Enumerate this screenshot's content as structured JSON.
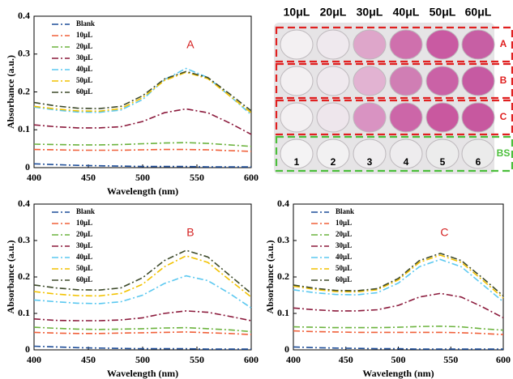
{
  "chart_data": [
    {
      "type": "line",
      "panel_label": "A",
      "x_label": "Wavelength (nm)",
      "y_label": "Absorbance (a.u.)",
      "x": [
        400,
        420,
        440,
        460,
        480,
        500,
        520,
        540,
        560,
        580,
        600
      ],
      "xlim": [
        400,
        600
      ],
      "xticks": [
        400,
        450,
        500,
        550,
        600
      ],
      "ylim": [
        0,
        0.4
      ],
      "yticks": [
        0,
        0.1,
        0.2,
        0.3,
        0.4
      ],
      "legend": "upper left",
      "series": [
        {
          "name": "Blank",
          "color": "#1f4e99",
          "values": [
            0.01,
            0.008,
            0.006,
            0.005,
            0.004,
            0.003,
            0.003,
            0.003,
            0.002,
            0.002,
            0.002
          ]
        },
        {
          "name": "10μL",
          "color": "#f0603a",
          "values": [
            0.048,
            0.047,
            0.046,
            0.046,
            0.046,
            0.047,
            0.048,
            0.048,
            0.047,
            0.045,
            0.043
          ]
        },
        {
          "name": "20μL",
          "color": "#6cb33e",
          "values": [
            0.062,
            0.061,
            0.06,
            0.06,
            0.061,
            0.063,
            0.065,
            0.066,
            0.064,
            0.06,
            0.056
          ]
        },
        {
          "name": "30μL",
          "color": "#8b1a3c",
          "values": [
            0.113,
            0.108,
            0.105,
            0.105,
            0.108,
            0.122,
            0.145,
            0.155,
            0.145,
            0.118,
            0.088
          ]
        },
        {
          "name": "40μL",
          "color": "#5bc8f0",
          "values": [
            0.16,
            0.152,
            0.147,
            0.146,
            0.152,
            0.18,
            0.232,
            0.262,
            0.238,
            0.19,
            0.14
          ]
        },
        {
          "name": "50μL",
          "color": "#f2c200",
          "values": [
            0.162,
            0.155,
            0.15,
            0.149,
            0.156,
            0.185,
            0.23,
            0.252,
            0.235,
            0.19,
            0.145
          ]
        },
        {
          "name": "60μL",
          "color": "#3d4a2a",
          "values": [
            0.172,
            0.163,
            0.157,
            0.156,
            0.162,
            0.19,
            0.234,
            0.254,
            0.238,
            0.195,
            0.15
          ]
        }
      ]
    },
    {
      "type": "line",
      "panel_label": "B",
      "x_label": "Wavelength (nm)",
      "y_label": "Absorbance (a.u.)",
      "x": [
        400,
        420,
        440,
        460,
        480,
        500,
        520,
        540,
        560,
        580,
        600
      ],
      "xlim": [
        400,
        600
      ],
      "xticks": [
        400,
        450,
        500,
        550,
        600
      ],
      "ylim": [
        0,
        0.4
      ],
      "yticks": [
        0,
        0.1,
        0.2,
        0.3,
        0.4
      ],
      "legend": "upper left",
      "series": [
        {
          "name": "Blank",
          "color": "#1f4e99",
          "values": [
            0.01,
            0.008,
            0.006,
            0.005,
            0.004,
            0.003,
            0.003,
            0.003,
            0.002,
            0.002,
            0.002
          ]
        },
        {
          "name": "10μL",
          "color": "#f0603a",
          "values": [
            0.048,
            0.046,
            0.045,
            0.045,
            0.046,
            0.047,
            0.048,
            0.049,
            0.047,
            0.045,
            0.042
          ]
        },
        {
          "name": "20μL",
          "color": "#6cb33e",
          "values": [
            0.062,
            0.059,
            0.057,
            0.056,
            0.057,
            0.058,
            0.06,
            0.061,
            0.058,
            0.055,
            0.05
          ]
        },
        {
          "name": "30μL",
          "color": "#8b1a3c",
          "values": [
            0.085,
            0.081,
            0.08,
            0.08,
            0.082,
            0.088,
            0.1,
            0.107,
            0.103,
            0.092,
            0.08
          ]
        },
        {
          "name": "40μL",
          "color": "#5bc8f0",
          "values": [
            0.137,
            0.132,
            0.128,
            0.127,
            0.132,
            0.15,
            0.182,
            0.203,
            0.19,
            0.155,
            0.115
          ]
        },
        {
          "name": "50μL",
          "color": "#f2c200",
          "values": [
            0.16,
            0.153,
            0.149,
            0.148,
            0.155,
            0.18,
            0.228,
            0.258,
            0.24,
            0.192,
            0.145
          ]
        },
        {
          "name": "60μL",
          "color": "#3d4a2a",
          "values": [
            0.178,
            0.17,
            0.165,
            0.164,
            0.17,
            0.198,
            0.245,
            0.273,
            0.255,
            0.205,
            0.155
          ]
        }
      ]
    },
    {
      "type": "line",
      "panel_label": "C",
      "x_label": "Wavelength (nm)",
      "y_label": "Absorbance (a.u.)",
      "x": [
        400,
        420,
        440,
        460,
        480,
        500,
        520,
        540,
        560,
        580,
        600
      ],
      "xlim": [
        400,
        600
      ],
      "xticks": [
        400,
        450,
        500,
        550,
        600
      ],
      "ylim": [
        0,
        0.4
      ],
      "yticks": [
        0,
        0.1,
        0.2,
        0.3,
        0.4
      ],
      "legend": "upper left",
      "series": [
        {
          "name": "Blank",
          "color": "#1f4e99",
          "values": [
            0.008,
            0.006,
            0.005,
            0.004,
            0.003,
            0.003,
            0.002,
            0.002,
            0.002,
            0.002,
            0.002
          ]
        },
        {
          "name": "10μL",
          "color": "#f0603a",
          "values": [
            0.052,
            0.05,
            0.049,
            0.048,
            0.048,
            0.048,
            0.048,
            0.048,
            0.047,
            0.045,
            0.042
          ]
        },
        {
          "name": "20μL",
          "color": "#6cb33e",
          "values": [
            0.063,
            0.062,
            0.061,
            0.061,
            0.061,
            0.062,
            0.064,
            0.065,
            0.063,
            0.058,
            0.054
          ]
        },
        {
          "name": "30μL",
          "color": "#8b1a3c",
          "values": [
            0.115,
            0.11,
            0.107,
            0.107,
            0.11,
            0.122,
            0.145,
            0.155,
            0.145,
            0.118,
            0.088
          ]
        },
        {
          "name": "40μL",
          "color": "#5bc8f0",
          "values": [
            0.165,
            0.157,
            0.152,
            0.151,
            0.157,
            0.183,
            0.228,
            0.248,
            0.228,
            0.18,
            0.132
          ]
        },
        {
          "name": "50μL",
          "color": "#f2c200",
          "values": [
            0.175,
            0.166,
            0.16,
            0.159,
            0.165,
            0.192,
            0.24,
            0.26,
            0.24,
            0.192,
            0.142
          ]
        },
        {
          "name": "60μL",
          "color": "#3d4a2a",
          "values": [
            0.178,
            0.169,
            0.163,
            0.162,
            0.168,
            0.196,
            0.245,
            0.265,
            0.245,
            0.198,
            0.148
          ]
        }
      ]
    }
  ],
  "plate_image": {
    "column_labels": [
      "10μL",
      "20μL",
      "30μL",
      "40μL",
      "50μL",
      "60μL"
    ],
    "row_labels": [
      "A",
      "B",
      "C",
      "BS"
    ],
    "well_numbers": [
      "1",
      "2",
      "3",
      "4",
      "5",
      "6"
    ]
  }
}
